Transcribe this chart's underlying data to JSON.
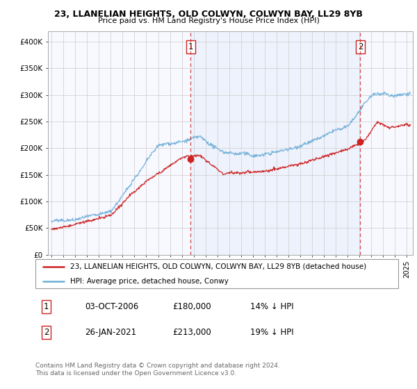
{
  "title_line1": "23, LLANELIAN HEIGHTS, OLD COLWYN, COLWYN BAY, LL29 8YB",
  "title_line2": "Price paid vs. HM Land Registry's House Price Index (HPI)",
  "ylabel_ticks": [
    "£0",
    "£50K",
    "£100K",
    "£150K",
    "£200K",
    "£250K",
    "£300K",
    "£350K",
    "£400K"
  ],
  "ytick_values": [
    0,
    50000,
    100000,
    150000,
    200000,
    250000,
    300000,
    350000,
    400000
  ],
  "ylim": [
    0,
    420000
  ],
  "xlim_start": 1994.7,
  "xlim_end": 2025.5,
  "transaction1_x": 2006.75,
  "transaction1_price": 180000,
  "transaction2_x": 2021.07,
  "transaction2_price": 213000,
  "legend_entry1": "23, LLANELIAN HEIGHTS, OLD COLWYN, COLWYN BAY, LL29 8YB (detached house)",
  "legend_entry2": "HPI: Average price, detached house, Conwy",
  "footnote1": "Contains HM Land Registry data © Crown copyright and database right 2024.",
  "footnote2": "This data is licensed under the Open Government Licence v3.0.",
  "table_row1": [
    "1",
    "03-OCT-2006",
    "£180,000",
    "14% ↓ HPI"
  ],
  "table_row2": [
    "2",
    "26-JAN-2021",
    "£213,000",
    "19% ↓ HPI"
  ],
  "hpi_color": "#6baed6",
  "price_color": "#cc2222",
  "vline_color": "#cc2222",
  "fill_color": "#ddeeff",
  "bg_color": "#ffffff",
  "grid_color": "#cccccc",
  "title_fontsize": 9.0,
  "subtitle_fontsize": 8.0,
  "tick_fontsize": 7.5,
  "legend_fontsize": 7.5,
  "table_fontsize": 8.5,
  "footnote_fontsize": 6.5
}
